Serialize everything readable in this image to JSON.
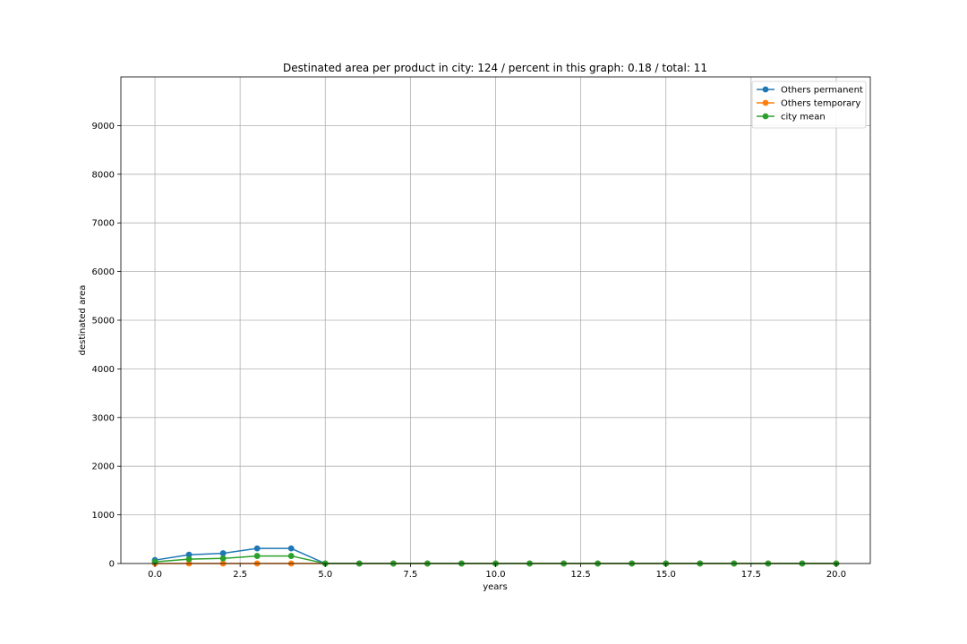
{
  "chart_data": {
    "type": "line",
    "title": "Destinated area per product in city: 124 / percent in this graph: 0.18 / total: 11",
    "xlabel": "years",
    "ylabel": "destinated area",
    "xlim": [
      -1,
      21
    ],
    "ylim": [
      0,
      10000
    ],
    "xticks": [
      0.0,
      2.5,
      5.0,
      7.5,
      10.0,
      12.5,
      15.0,
      17.5,
      20.0
    ],
    "xtick_labels": [
      "0.0",
      "2.5",
      "5.0",
      "7.5",
      "10.0",
      "12.5",
      "15.0",
      "17.5",
      "20.0"
    ],
    "yticks": [
      0,
      1000,
      2000,
      3000,
      4000,
      5000,
      6000,
      7000,
      8000,
      9000
    ],
    "ytick_labels": [
      "0",
      "1000",
      "2000",
      "3000",
      "4000",
      "5000",
      "6000",
      "7000",
      "8000",
      "9000"
    ],
    "grid": true,
    "legend_position": "top-right",
    "x": [
      0,
      1,
      2,
      3,
      4,
      5,
      6,
      7,
      8,
      9,
      10,
      11,
      12,
      13,
      14,
      15,
      16,
      17,
      18,
      19,
      20
    ],
    "series": [
      {
        "name": "Others permanent",
        "color": "#1f77b4",
        "values": [
          70,
          180,
          210,
          310,
          310,
          0,
          0,
          0,
          0,
          0,
          0,
          0,
          0,
          0,
          0,
          0,
          0,
          0,
          0,
          0,
          0
        ]
      },
      {
        "name": "Others temporary",
        "color": "#ff7f0e",
        "values": [
          0,
          0,
          0,
          0,
          0,
          0,
          0,
          0,
          0,
          0,
          0,
          0,
          0,
          0,
          0,
          0,
          0,
          0,
          0,
          0,
          0
        ]
      },
      {
        "name": "city mean",
        "color": "#2ca02c",
        "values": [
          35,
          90,
          105,
          155,
          155,
          0,
          0,
          0,
          0,
          0,
          0,
          0,
          0,
          0,
          0,
          0,
          0,
          0,
          0,
          0,
          0
        ]
      }
    ]
  }
}
